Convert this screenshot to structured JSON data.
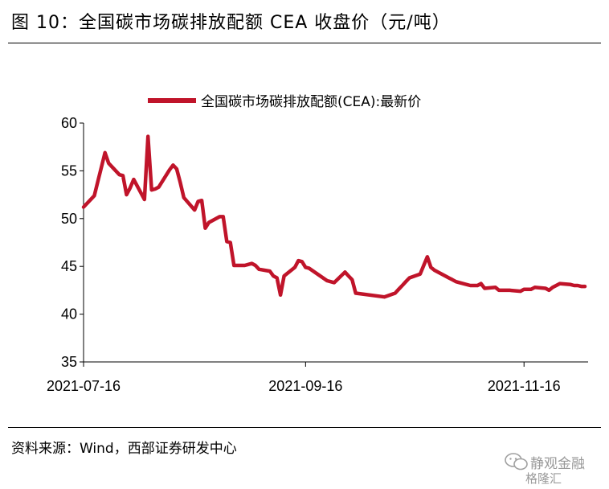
{
  "figure": {
    "title": "图 10：全国碳市场碳排放配额 CEA 收盘价（元/吨）",
    "source": "资料来源：Wind，西部证券研发中心"
  },
  "watermark": {
    "top_text": "静观金融",
    "bottom_text": "格隆汇"
  },
  "colors": {
    "series": "#c0142a",
    "axis": "#000000"
  },
  "chart_data": {
    "type": "line",
    "title": "全国碳市场碳排放配额 CEA 收盘价（元/吨）",
    "xlabel": "",
    "ylabel": "",
    "ylim": [
      35,
      60
    ],
    "yticks": [
      35,
      40,
      45,
      50,
      55,
      60
    ],
    "x_tick_labels": [
      "2021-07-16",
      "2021-09-16",
      "2021-11-16"
    ],
    "x_tick_dates": [
      "2021-07-16",
      "2021-09-16",
      "2021-11-16"
    ],
    "xlim": [
      "2021-07-16",
      "2021-12-03"
    ],
    "grid": false,
    "legend": {
      "placement": "top-center"
    },
    "series": [
      {
        "name": "全国碳市场碳排放配额(CEA):最新价",
        "x": [
          "2021-07-16",
          "2021-07-19",
          "2021-07-20",
          "2021-07-21",
          "2021-07-22",
          "2021-07-23",
          "2021-07-26",
          "2021-07-27",
          "2021-07-28",
          "2021-07-29",
          "2021-07-30",
          "2021-08-02",
          "2021-08-03",
          "2021-08-04",
          "2021-08-05",
          "2021-08-06",
          "2021-08-09",
          "2021-08-10",
          "2021-08-11",
          "2021-08-12",
          "2021-08-13",
          "2021-08-16",
          "2021-08-17",
          "2021-08-18",
          "2021-08-19",
          "2021-08-20",
          "2021-08-23",
          "2021-08-24",
          "2021-08-25",
          "2021-08-26",
          "2021-08-27",
          "2021-08-30",
          "2021-08-31",
          "2021-09-01",
          "2021-09-02",
          "2021-09-03",
          "2021-09-06",
          "2021-09-07",
          "2021-09-08",
          "2021-09-09",
          "2021-09-10",
          "2021-09-13",
          "2021-09-14",
          "2021-09-15",
          "2021-09-16",
          "2021-09-17",
          "2021-09-22",
          "2021-09-23",
          "2021-09-24",
          "2021-09-27",
          "2021-09-28",
          "2021-09-29",
          "2021-09-30",
          "2021-10-08",
          "2021-10-11",
          "2021-10-12",
          "2021-10-13",
          "2021-10-14",
          "2021-10-15",
          "2021-10-18",
          "2021-10-19",
          "2021-10-20",
          "2021-10-21",
          "2021-10-22",
          "2021-10-25",
          "2021-10-26",
          "2021-10-27",
          "2021-10-28",
          "2021-10-29",
          "2021-11-01",
          "2021-11-02",
          "2021-11-03",
          "2021-11-04",
          "2021-11-05",
          "2021-11-08",
          "2021-11-09",
          "2021-11-10",
          "2021-11-11",
          "2021-11-12",
          "2021-11-15",
          "2021-11-16",
          "2021-11-17",
          "2021-11-18",
          "2021-11-19",
          "2021-11-22",
          "2021-11-23",
          "2021-11-24",
          "2021-11-25",
          "2021-11-26",
          "2021-11-29",
          "2021-11-30",
          "2021-12-01",
          "2021-12-02",
          "2021-12-03"
        ],
        "values": [
          51.2,
          52.4,
          53.9,
          55.4,
          56.9,
          55.8,
          54.6,
          54.5,
          52.5,
          53.2,
          54.1,
          52.0,
          58.6,
          53.0,
          53.1,
          53.3,
          55.1,
          55.6,
          55.2,
          53.8,
          52.2,
          50.9,
          51.8,
          51.9,
          49.0,
          49.6,
          50.2,
          50.2,
          47.6,
          47.5,
          45.1,
          45.1,
          45.2,
          45.3,
          45.1,
          44.7,
          44.5,
          44.0,
          43.8,
          42.0,
          44.0,
          44.9,
          45.6,
          45.5,
          44.9,
          44.8,
          43.5,
          43.4,
          43.3,
          44.4,
          44.0,
          43.6,
          42.2,
          41.8,
          42.2,
          42.6,
          43.0,
          43.4,
          43.8,
          44.2,
          45.1,
          46.0,
          44.9,
          44.6,
          44.0,
          43.8,
          43.6,
          43.4,
          43.3,
          43.0,
          43.0,
          43.0,
          43.2,
          42.7,
          42.8,
          42.5,
          42.5,
          42.5,
          42.5,
          42.4,
          42.6,
          42.6,
          42.6,
          42.8,
          42.7,
          42.5,
          42.8,
          43.0,
          43.2,
          43.1,
          43.0,
          43.0,
          42.9,
          42.9
        ]
      }
    ]
  }
}
